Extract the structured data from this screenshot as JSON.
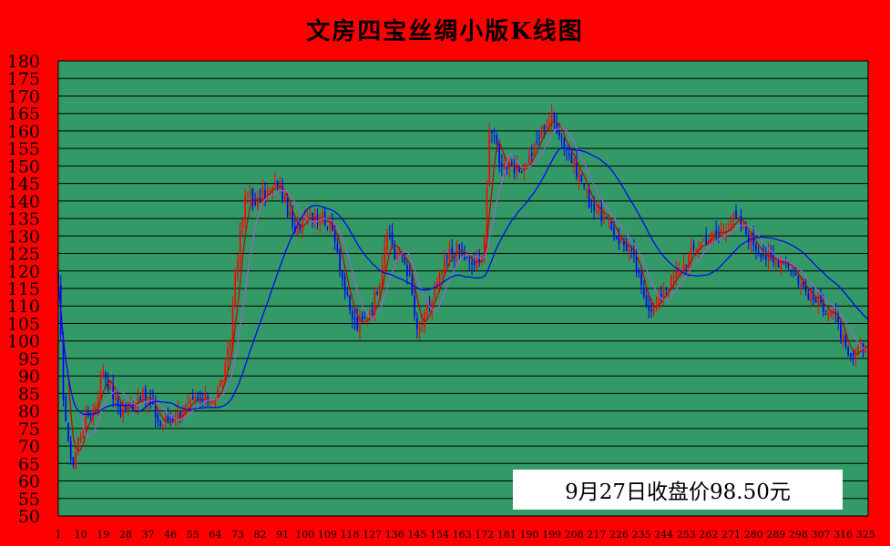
{
  "colors": {
    "background": "#ff0000",
    "plot_area": "#339966",
    "gridline": "#000000",
    "candle_up": "#ff0000",
    "candle_down": "#0000ff",
    "ma_short": "#cc0000",
    "ma_mid": "#9966cc",
    "ma_long": "#0000ff"
  },
  "chart_data": {
    "type": "candlestick",
    "title": "文房四宝丝绸小版K线图",
    "annotation": "9月27日收盘价98.50元",
    "ylim": [
      50,
      180
    ],
    "y_ticks": [
      180,
      175,
      170,
      165,
      160,
      155,
      150,
      145,
      140,
      135,
      130,
      125,
      120,
      115,
      110,
      105,
      100,
      95,
      90,
      85,
      80,
      75,
      70,
      65,
      60,
      55,
      50
    ],
    "x_range": [
      1,
      326
    ],
    "x_ticks": [
      1,
      10,
      19,
      28,
      37,
      46,
      55,
      64,
      73,
      82,
      91,
      100,
      109,
      118,
      127,
      136,
      145,
      154,
      163,
      172,
      181,
      190,
      199,
      208,
      217,
      226,
      235,
      244,
      253,
      262,
      271,
      280,
      289,
      298,
      307,
      316,
      325
    ],
    "grid": "horizontal",
    "close_anchors": {
      "x": [
        1,
        3,
        5,
        7,
        9,
        12,
        16,
        19,
        22,
        26,
        30,
        34,
        38,
        42,
        46,
        50,
        55,
        60,
        64,
        66,
        68,
        70,
        72,
        74,
        76,
        78,
        80,
        83,
        86,
        89,
        92,
        96,
        100,
        104,
        108,
        112,
        115,
        118,
        121,
        124,
        127,
        130,
        132,
        134,
        136,
        139,
        142,
        145,
        147,
        150,
        154,
        158,
        162,
        166,
        170,
        172,
        174,
        176,
        178,
        181,
        184,
        188,
        192,
        196,
        199,
        202,
        205,
        208,
        211,
        214,
        217,
        220,
        223,
        226,
        229,
        232,
        235,
        238,
        241,
        244,
        248,
        252,
        256,
        260,
        264,
        268,
        272,
        276,
        280,
        284,
        288,
        292,
        296,
        300,
        304,
        308,
        312,
        316,
        318,
        320,
        322,
        324,
        326
      ],
      "y": [
        115,
        85,
        70,
        65,
        72,
        78,
        82,
        92,
        86,
        80,
        82,
        85,
        82,
        76,
        78,
        80,
        82,
        83,
        84,
        88,
        92,
        100,
        120,
        130,
        140,
        143,
        138,
        142,
        143,
        145,
        140,
        130,
        137,
        136,
        135,
        130,
        118,
        108,
        104,
        106,
        110,
        118,
        128,
        130,
        124,
        125,
        118,
        102,
        105,
        110,
        118,
        125,
        126,
        122,
        122,
        130,
        158,
        160,
        152,
        150,
        148,
        150,
        155,
        162,
        164,
        160,
        155,
        150,
        146,
        140,
        138,
        135,
        132,
        129,
        127,
        123,
        115,
        110,
        110,
        115,
        118,
        122,
        126,
        129,
        130,
        132,
        135,
        132,
        128,
        125,
        122,
        124,
        120,
        115,
        112,
        110,
        108,
        100,
        94,
        95,
        97,
        98,
        98.5
      ]
    },
    "ma_series": [
      {
        "window": 5
      },
      {
        "window": 10
      },
      {
        "window": 30
      }
    ]
  }
}
